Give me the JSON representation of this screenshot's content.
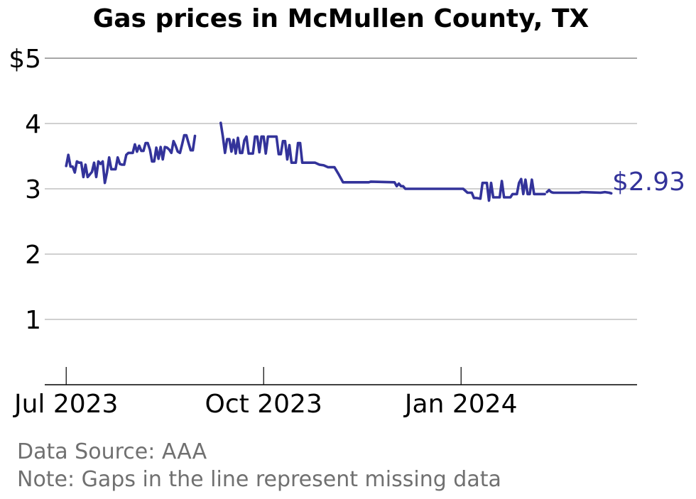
{
  "chart_data": {
    "type": "line",
    "title": "Gas prices in McMullen County, TX",
    "xlabel": "",
    "ylabel": "",
    "y_ticks": [
      {
        "value": 5,
        "label": "$5"
      },
      {
        "value": 4,
        "label": "4"
      },
      {
        "value": 3,
        "label": "3"
      },
      {
        "value": 2,
        "label": "2"
      },
      {
        "value": 1,
        "label": "1"
      }
    ],
    "x_ticks": [
      {
        "date": "2023-07-01",
        "label": "Jul 2023"
      },
      {
        "date": "2023-10-01",
        "label": "Oct 2023"
      },
      {
        "date": "2024-01-01",
        "label": "Jan 2024"
      }
    ],
    "xlim": [
      "2023-06-21",
      "2024-03-23"
    ],
    "ylim": [
      0,
      5
    ],
    "grid": "horizontal",
    "line_color": "#33339a",
    "end_label": "$2.93",
    "series": [
      {
        "segments": [
          [
            [
              "2023-07-01",
              3.35
            ],
            [
              "2023-07-02",
              3.52
            ],
            [
              "2023-07-03",
              3.34
            ],
            [
              "2023-07-04",
              3.34
            ],
            [
              "2023-07-05",
              3.25
            ],
            [
              "2023-07-06",
              3.42
            ],
            [
              "2023-07-07",
              3.4
            ],
            [
              "2023-07-08",
              3.4
            ],
            [
              "2023-07-09",
              3.18
            ],
            [
              "2023-07-10",
              3.37
            ],
            [
              "2023-07-11",
              3.18
            ],
            [
              "2023-07-12",
              3.22
            ],
            [
              "2023-07-13",
              3.26
            ],
            [
              "2023-07-14",
              3.4
            ],
            [
              "2023-07-15",
              3.18
            ],
            [
              "2023-07-16",
              3.42
            ],
            [
              "2023-07-17",
              3.38
            ],
            [
              "2023-07-18",
              3.42
            ],
            [
              "2023-07-19",
              3.09
            ],
            [
              "2023-07-20",
              3.25
            ],
            [
              "2023-07-21",
              3.48
            ],
            [
              "2023-07-22",
              3.3
            ],
            [
              "2023-07-23",
              3.3
            ],
            [
              "2023-07-24",
              3.3
            ],
            [
              "2023-07-25",
              3.48
            ],
            [
              "2023-07-26",
              3.38
            ],
            [
              "2023-07-27",
              3.37
            ],
            [
              "2023-07-28",
              3.37
            ],
            [
              "2023-07-29",
              3.52
            ],
            [
              "2023-07-30",
              3.55
            ],
            [
              "2023-07-31",
              3.55
            ],
            [
              "2023-08-01",
              3.55
            ],
            [
              "2023-08-02",
              3.68
            ],
            [
              "2023-08-03",
              3.57
            ],
            [
              "2023-08-04",
              3.66
            ],
            [
              "2023-08-05",
              3.58
            ],
            [
              "2023-08-06",
              3.58
            ],
            [
              "2023-08-07",
              3.7
            ],
            [
              "2023-08-08",
              3.7
            ],
            [
              "2023-08-09",
              3.6
            ],
            [
              "2023-08-10",
              3.42
            ],
            [
              "2023-08-11",
              3.42
            ],
            [
              "2023-08-12",
              3.63
            ],
            [
              "2023-08-13",
              3.46
            ],
            [
              "2023-08-14",
              3.64
            ],
            [
              "2023-08-15",
              3.45
            ],
            [
              "2023-08-16",
              3.64
            ],
            [
              "2023-08-17",
              3.63
            ],
            [
              "2023-08-18",
              3.6
            ],
            [
              "2023-08-19",
              3.55
            ],
            [
              "2023-08-20",
              3.73
            ],
            [
              "2023-08-21",
              3.66
            ],
            [
              "2023-08-22",
              3.57
            ],
            [
              "2023-08-23",
              3.55
            ],
            [
              "2023-08-24",
              3.68
            ],
            [
              "2023-08-25",
              3.82
            ],
            [
              "2023-08-26",
              3.82
            ],
            [
              "2023-08-27",
              3.7
            ],
            [
              "2023-08-28",
              3.59
            ],
            [
              "2023-08-29",
              3.59
            ],
            [
              "2023-08-30",
              3.81
            ]
          ],
          [
            [
              "2023-09-11",
              4.01
            ],
            [
              "2023-09-12",
              3.8
            ],
            [
              "2023-09-13",
              3.55
            ],
            [
              "2023-09-14",
              3.76
            ],
            [
              "2023-09-15",
              3.76
            ],
            [
              "2023-09-16",
              3.57
            ],
            [
              "2023-09-17",
              3.75
            ],
            [
              "2023-09-18",
              3.54
            ],
            [
              "2023-09-19",
              3.78
            ],
            [
              "2023-09-20",
              3.55
            ],
            [
              "2023-09-21",
              3.55
            ],
            [
              "2023-09-22",
              3.74
            ],
            [
              "2023-09-23",
              3.8
            ],
            [
              "2023-09-24",
              3.54
            ],
            [
              "2023-09-25",
              3.54
            ],
            [
              "2023-09-26",
              3.54
            ],
            [
              "2023-09-27",
              3.8
            ],
            [
              "2023-09-28",
              3.8
            ],
            [
              "2023-09-29",
              3.56
            ],
            [
              "2023-09-30",
              3.8
            ],
            [
              "2023-10-01",
              3.8
            ],
            [
              "2023-10-02",
              3.54
            ],
            [
              "2023-10-03",
              3.8
            ],
            [
              "2023-10-04",
              3.8
            ],
            [
              "2023-10-05",
              3.8
            ],
            [
              "2023-10-06",
              3.8
            ],
            [
              "2023-10-07",
              3.8
            ],
            [
              "2023-10-08",
              3.53
            ],
            [
              "2023-10-09",
              3.53
            ],
            [
              "2023-10-10",
              3.73
            ],
            [
              "2023-10-11",
              3.73
            ],
            [
              "2023-10-12",
              3.45
            ],
            [
              "2023-10-13",
              3.67
            ],
            [
              "2023-10-14",
              3.4
            ],
            [
              "2023-10-15",
              3.4
            ],
            [
              "2023-10-16",
              3.4
            ],
            [
              "2023-10-17",
              3.7
            ],
            [
              "2023-10-18",
              3.7
            ],
            [
              "2023-10-19",
              3.4
            ],
            [
              "2023-10-23",
              3.4
            ],
            [
              "2023-10-25",
              3.4
            ],
            [
              "2023-10-27",
              3.37
            ],
            [
              "2023-10-29",
              3.36
            ],
            [
              "2023-10-31",
              3.33
            ],
            [
              "2023-11-03",
              3.33
            ],
            [
              "2023-11-05",
              3.22
            ],
            [
              "2023-11-07",
              3.1
            ],
            [
              "2023-11-19",
              3.1
            ],
            [
              "2023-11-20",
              3.11
            ],
            [
              "2023-12-01",
              3.1
            ],
            [
              "2023-12-02",
              3.04
            ],
            [
              "2023-12-03",
              3.08
            ],
            [
              "2023-12-04",
              3.04
            ],
            [
              "2023-12-05",
              3.04
            ],
            [
              "2023-12-06",
              3.0
            ],
            [
              "2023-12-31",
              3.0
            ],
            [
              "2024-01-02",
              3.0
            ],
            [
              "2024-01-04",
              2.94
            ],
            [
              "2024-01-06",
              2.94
            ],
            [
              "2024-01-07",
              2.86
            ],
            [
              "2024-01-08",
              2.86
            ],
            [
              "2024-01-10",
              2.85
            ],
            [
              "2024-01-11",
              3.09
            ],
            [
              "2024-01-13",
              3.09
            ],
            [
              "2024-01-14",
              2.82
            ],
            [
              "2024-01-15",
              3.09
            ],
            [
              "2024-01-16",
              2.87
            ],
            [
              "2024-01-17",
              2.87
            ],
            [
              "2024-01-18",
              2.87
            ],
            [
              "2024-01-19",
              2.87
            ],
            [
              "2024-01-20",
              3.12
            ],
            [
              "2024-01-21",
              2.87
            ],
            [
              "2024-01-22",
              2.87
            ],
            [
              "2024-01-24",
              2.87
            ],
            [
              "2024-01-25",
              2.92
            ],
            [
              "2024-01-26",
              2.92
            ],
            [
              "2024-01-27",
              2.92
            ],
            [
              "2024-01-28",
              3.09
            ],
            [
              "2024-01-29",
              3.15
            ],
            [
              "2024-01-30",
              2.92
            ],
            [
              "2024-01-31",
              3.14
            ],
            [
              "2024-02-01",
              2.92
            ],
            [
              "2024-02-02",
              2.92
            ],
            [
              "2024-02-03",
              3.14
            ],
            [
              "2024-02-04",
              2.92
            ],
            [
              "2024-02-05",
              2.92
            ],
            [
              "2024-02-09",
              2.92
            ]
          ],
          [
            [
              "2024-02-10",
              2.95
            ],
            [
              "2024-02-11",
              2.98
            ],
            [
              "2024-02-12",
              2.95
            ],
            [
              "2024-02-13",
              2.94
            ],
            [
              "2024-02-25",
              2.94
            ],
            [
              "2024-02-26",
              2.95
            ],
            [
              "2024-03-06",
              2.94
            ],
            [
              "2024-03-08",
              2.95
            ],
            [
              "2024-03-10",
              2.94
            ],
            [
              "2024-03-11",
              2.93
            ]
          ]
        ]
      }
    ]
  },
  "footnotes": {
    "source": "Data Source: AAA",
    "note": "Note: Gaps in the line represent missing data"
  }
}
